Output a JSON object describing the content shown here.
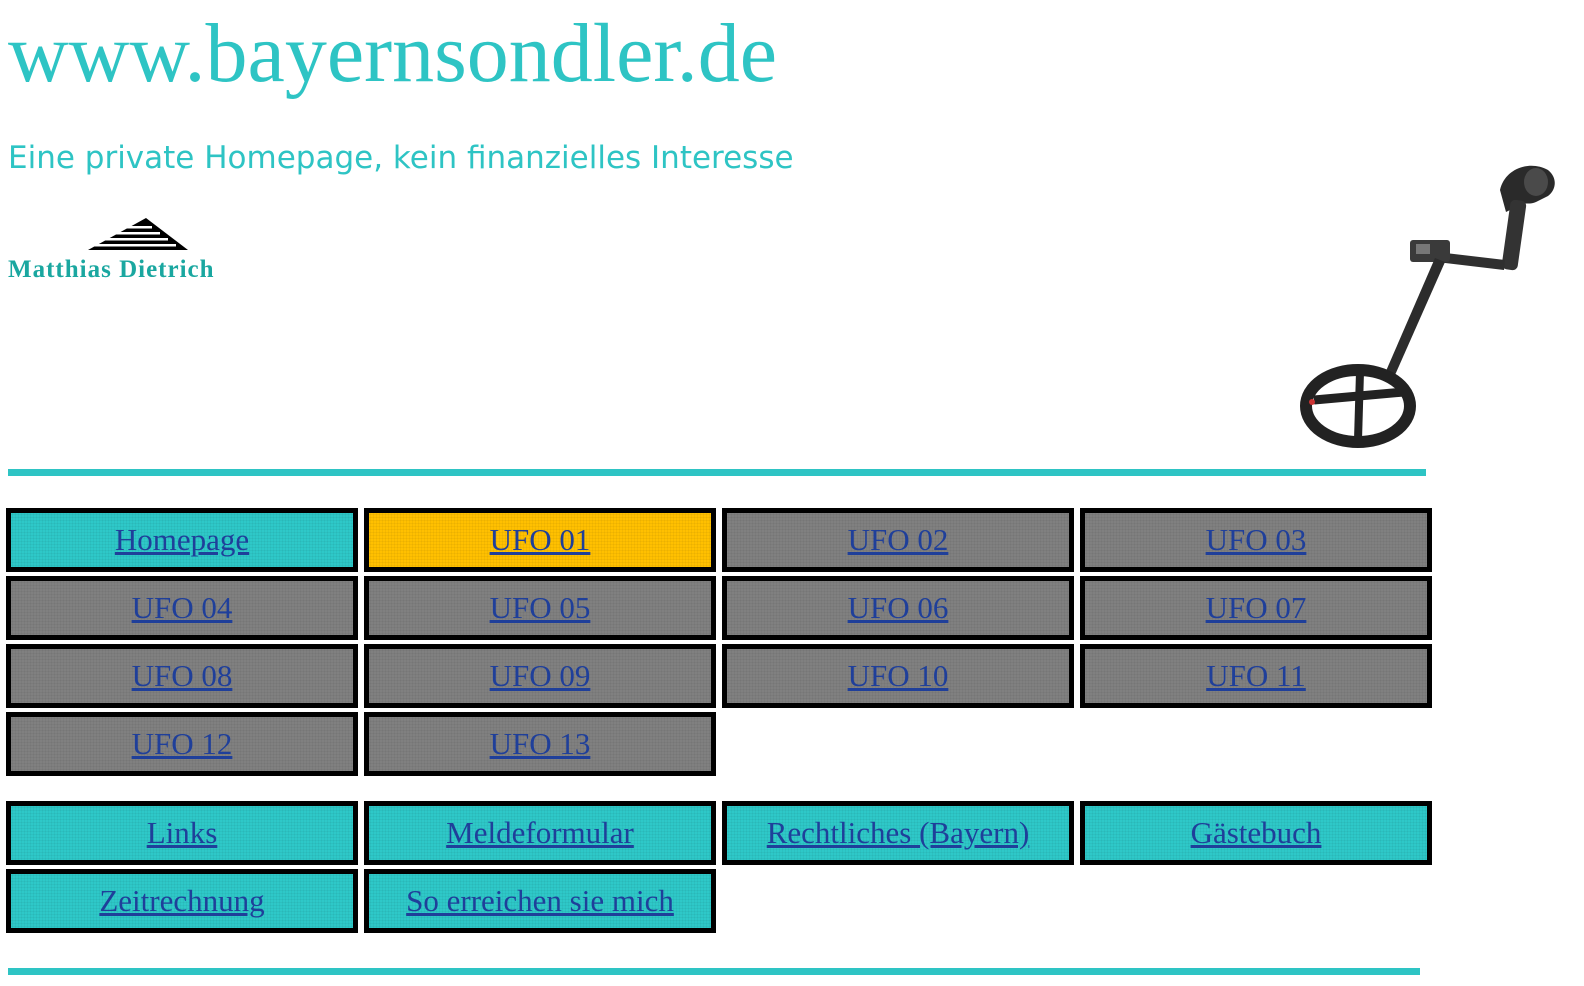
{
  "header": {
    "title": "www.bayernsondler.de",
    "subtitle": "Eine private Homepage, kein finanzielles Interesse",
    "logo_text": "Matthias Dietrich"
  },
  "colors": {
    "accent": "#2ec4c4",
    "active": "#ffc000",
    "inactive": "#808080",
    "link": "#1f3f9a"
  },
  "nav": {
    "main": [
      {
        "label": "Homepage",
        "style": "cyan"
      },
      {
        "label": "UFO 01",
        "style": "active"
      },
      {
        "label": "UFO 02",
        "style": "gray"
      },
      {
        "label": "UFO 03",
        "style": "gray"
      },
      {
        "label": "UFO 04",
        "style": "gray"
      },
      {
        "label": "UFO 05",
        "style": "gray"
      },
      {
        "label": "UFO 06",
        "style": "gray"
      },
      {
        "label": "UFO 07",
        "style": "gray"
      },
      {
        "label": "UFO 08",
        "style": "gray"
      },
      {
        "label": "UFO 09",
        "style": "gray"
      },
      {
        "label": "UFO 10",
        "style": "gray"
      },
      {
        "label": "UFO 11",
        "style": "gray"
      },
      {
        "label": "UFO 12",
        "style": "gray"
      },
      {
        "label": "UFO 13",
        "style": "gray"
      }
    ],
    "extra": [
      {
        "label": "Links",
        "style": "cyan"
      },
      {
        "label": "Meldeformular",
        "style": "cyan"
      },
      {
        "label": "Rechtliches (Bayern)",
        "style": "cyan"
      },
      {
        "label": "Gästebuch",
        "style": "cyan"
      },
      {
        "label": "Zeitrechnung",
        "style": "cyan"
      },
      {
        "label": "So erreichen sie mich",
        "style": "cyan"
      }
    ]
  }
}
